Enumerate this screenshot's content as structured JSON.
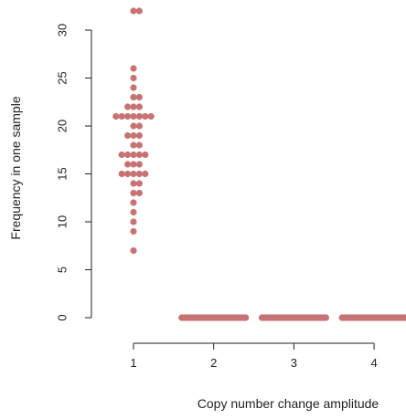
{
  "chart_data": {
    "type": "scatter",
    "title": "",
    "xlabel": "Copy number change amplitude",
    "ylabel": "Frequency in one sample",
    "x_ticks": [
      1,
      2,
      3,
      4
    ],
    "y_ticks": [
      0,
      5,
      10,
      15,
      20,
      25,
      30
    ],
    "xlim": [
      0.5,
      4.35
    ],
    "ylim": [
      0,
      32
    ],
    "grid": false,
    "legend": "none",
    "point_color": "#c87373",
    "groups": [
      {
        "x": 1,
        "values": [
          32,
          32,
          26,
          25,
          24,
          23,
          23,
          22,
          22,
          22,
          21,
          21,
          21,
          21,
          21,
          21,
          21,
          20,
          20,
          19,
          19,
          19,
          18,
          18,
          17,
          17,
          17,
          17,
          17,
          16,
          16,
          16,
          15,
          15,
          15,
          15,
          15,
          14,
          14,
          13,
          13,
          12,
          11,
          10,
          9,
          7
        ]
      },
      {
        "x": 2,
        "values": [
          0,
          0,
          0,
          0,
          0,
          0,
          0,
          0,
          0,
          0,
          0,
          0,
          0,
          0,
          0,
          0,
          0,
          0,
          0,
          0,
          0,
          0,
          0,
          0,
          0,
          0,
          0,
          0,
          0,
          0,
          0,
          0,
          0,
          0,
          0,
          0,
          0,
          0,
          0,
          0,
          0,
          0,
          0,
          0,
          0,
          0
        ]
      },
      {
        "x": 3,
        "values": [
          0,
          0,
          0,
          0,
          0,
          0,
          0,
          0,
          0,
          0,
          0,
          0,
          0,
          0,
          0,
          0,
          0,
          0,
          0,
          0,
          0,
          0,
          0,
          0,
          0,
          0,
          0,
          0,
          0,
          0,
          0,
          0,
          0,
          0,
          0,
          0,
          0,
          0,
          0,
          0,
          0,
          0,
          0,
          0,
          0,
          0
        ]
      },
      {
        "x": 4,
        "values": [
          0,
          0,
          0,
          0,
          0,
          0,
          0,
          0,
          0,
          0,
          0,
          0,
          0,
          0,
          0,
          0,
          0,
          0,
          0,
          0,
          0,
          0,
          0,
          0,
          0,
          0,
          0,
          0,
          0,
          0,
          0,
          0,
          0,
          0,
          0,
          0,
          0,
          0,
          0,
          0,
          0,
          0,
          0,
          0,
          0,
          0
        ]
      }
    ]
  }
}
